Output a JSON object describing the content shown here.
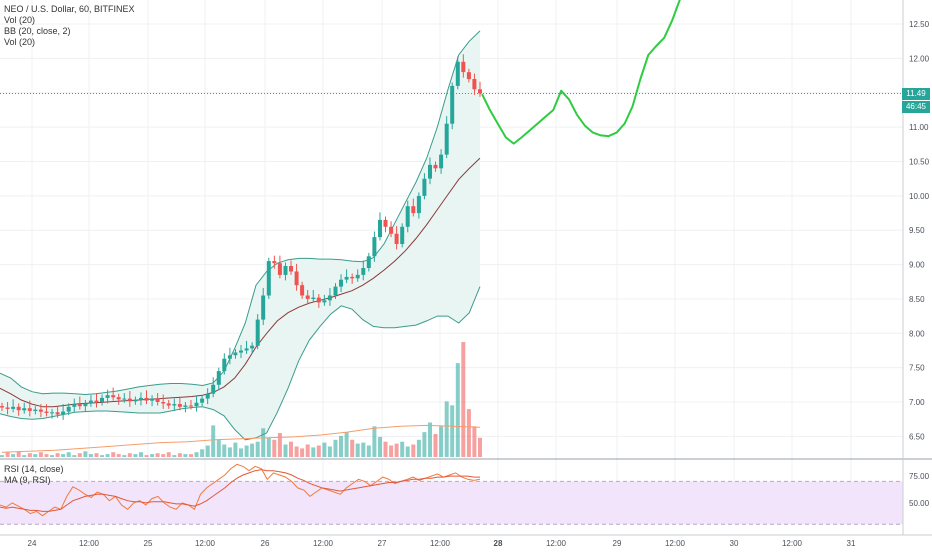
{
  "legend": {
    "title": "NEO / U.S. Dollar, 60, BITFINEX",
    "line2": "Vol (20)",
    "line3": "BB (20, close, 2)",
    "line4": "Vol (20)"
  },
  "rsi_legend": {
    "line1": "RSI (14, close)",
    "line2": "MA (9, RSI)"
  },
  "price_tag": {
    "price": "11.49",
    "countdown": "46:45"
  },
  "colors": {
    "up": "#26a69a",
    "down": "#ef5350",
    "bb_fill": "#e8f5f3",
    "bb_line": "#3a9c8c",
    "basis": "#8b3a3a",
    "forecast": "#2ecc40",
    "rsi_band": "#f1e4fb",
    "rsi_line": "#f07a3a",
    "ma_line": "#e2583a"
  },
  "chart_data": [
    {
      "type": "candlestick",
      "title": "NEO / U.S. Dollar, 60, BITFINEX",
      "ylim": [
        6.2,
        12.85
      ],
      "y_ticks": [
        "12.50",
        "12.00",
        "11.50",
        "11.00",
        "10.50",
        "10.00",
        "9.50",
        "9.00",
        "8.50",
        "8.00",
        "7.50",
        "7.00",
        "6.50"
      ],
      "x_ticks": [
        "24",
        "12:00",
        "25",
        "12:00",
        "26",
        "12:00",
        "27",
        "12:00",
        "28",
        "12:00",
        "29",
        "12:00",
        "30",
        "12:00",
        "31"
      ],
      "last_price": 11.49,
      "candles_close": [
        6.92,
        6.9,
        6.93,
        6.88,
        6.91,
        6.87,
        6.89,
        6.86,
        6.84,
        6.85,
        6.82,
        6.86,
        6.93,
        6.97,
        6.94,
        6.98,
        7.02,
        7.0,
        7.06,
        7.1,
        7.07,
        7.04,
        7.05,
        7.01,
        7.03,
        7.06,
        7.02,
        7.05,
        7.0,
        6.98,
        6.95,
        6.97,
        6.93,
        6.95,
        6.94,
        6.99,
        7.05,
        7.12,
        7.25,
        7.45,
        7.63,
        7.68,
        7.72,
        7.75,
        7.78,
        7.82,
        8.2,
        8.55,
        9.05,
        9.02,
        8.85,
        8.98,
        8.9,
        8.7,
        8.55,
        8.5,
        8.52,
        8.45,
        8.48,
        8.55,
        8.68,
        8.78,
        8.82,
        8.8,
        8.85,
        8.95,
        9.12,
        9.4,
        9.65,
        9.55,
        9.45,
        9.3,
        9.55,
        9.85,
        9.75,
        10.0,
        10.25,
        10.45,
        10.4,
        10.6,
        11.05,
        11.6,
        11.95,
        11.8,
        11.7,
        11.55,
        11.49
      ],
      "bb_upper": [
        7.42,
        7.35,
        7.22,
        7.15,
        7.12,
        7.13,
        7.13,
        7.12,
        7.11,
        7.12,
        7.14,
        7.16,
        7.19,
        7.22,
        7.24,
        7.26,
        7.27,
        7.27,
        7.26,
        7.24,
        7.28,
        7.45,
        7.78,
        8.15,
        8.7,
        8.9,
        9.02,
        9.07,
        9.09,
        9.09,
        9.08,
        9.08,
        9.07,
        9.05,
        9.04,
        9.1,
        9.3,
        9.6,
        9.9,
        10.2,
        10.55,
        11.0,
        11.55,
        12.05,
        12.25,
        12.4
      ],
      "bb_lower": [
        6.83,
        6.79,
        6.76,
        6.75,
        6.76,
        6.79,
        6.82,
        6.85,
        6.86,
        6.87,
        6.87,
        6.86,
        6.85,
        6.84,
        6.84,
        6.84,
        6.87,
        6.9,
        6.92,
        6.93,
        6.89,
        6.8,
        6.6,
        6.45,
        6.48,
        6.55,
        6.85,
        7.2,
        7.6,
        7.9,
        8.1,
        8.28,
        8.4,
        8.35,
        8.2,
        8.1,
        8.08,
        8.08,
        8.1,
        8.12,
        8.18,
        8.25,
        8.25,
        8.15,
        8.3,
        8.68
      ],
      "bb_basis": [
        7.2,
        7.12,
        7.03,
        6.97,
        6.93,
        6.93,
        6.95,
        6.97,
        6.98,
        6.99,
        7.0,
        7.01,
        7.02,
        7.03,
        7.04,
        7.05,
        7.06,
        7.07,
        7.08,
        7.1,
        7.14,
        7.22,
        7.35,
        7.55,
        7.8,
        8.0,
        8.18,
        8.3,
        8.38,
        8.44,
        8.48,
        8.52,
        8.57,
        8.62,
        8.7,
        8.8,
        8.92,
        9.05,
        9.2,
        9.38,
        9.58,
        9.8,
        10.02,
        10.24,
        10.4,
        10.55
      ],
      "forecast": [
        11.48,
        11.25,
        11.05,
        10.85,
        10.76,
        10.85,
        10.95,
        11.05,
        11.15,
        11.25,
        11.53,
        11.4,
        11.18,
        11.02,
        10.92,
        10.88,
        10.87,
        10.92,
        11.05,
        11.3,
        11.7,
        12.05,
        12.18,
        12.3,
        12.55,
        12.86
      ]
    },
    {
      "type": "bar",
      "title": "Vol (20)",
      "values": [
        0.2,
        0.5,
        0.3,
        0.6,
        0.2,
        0.4,
        0.3,
        0.5,
        0.3,
        0.2,
        0.4,
        0.3,
        0.5,
        0.2,
        0.4,
        0.6,
        0.3,
        0.4,
        0.2,
        0.3,
        0.5,
        0.3,
        0.2,
        0.4,
        0.3,
        0.5,
        0.2,
        0.3,
        0.4,
        0.3,
        0.5,
        0.2,
        0.4,
        0.3,
        0.3,
        0.5,
        0.8,
        1.2,
        3.3,
        1.8,
        1.3,
        1.0,
        1.5,
        0.9,
        1.2,
        1.4,
        1.6,
        3.0,
        2.0,
        1.8,
        2.5,
        1.3,
        1.6,
        1.1,
        0.9,
        1.3,
        1.0,
        1.2,
        1.5,
        1.1,
        1.8,
        2.2,
        2.6,
        1.8,
        1.4,
        1.5,
        1.2,
        3.2,
        2.1,
        1.6,
        1.2,
        1.4,
        1.6,
        1.1,
        1.3,
        1.8,
        2.6,
        3.6,
        2.4,
        3.2,
        5.8,
        5.4,
        9.8,
        12.0,
        5.0,
        3.2,
        2.0
      ],
      "ma": [
        0.5,
        0.6,
        0.7,
        0.9,
        1.1,
        1.3,
        1.5,
        1.6,
        1.8,
        1.9,
        2.0,
        2.1,
        2.3,
        2.6,
        3.0,
        3.2,
        3.3,
        3.2,
        3.1
      ]
    },
    {
      "type": "line",
      "title": "RSI (14, close)",
      "ylim": [
        20,
        90
      ],
      "y_ticks": [
        "75.00",
        "50.00"
      ],
      "band": [
        30,
        70
      ],
      "series": [
        {
          "name": "RSI (14, close)",
          "values": [
            48,
            46,
            50,
            47,
            44,
            40,
            42,
            38,
            42,
            46,
            44,
            56,
            65,
            62,
            58,
            55,
            60,
            58,
            52,
            56,
            48,
            44,
            50,
            52,
            48,
            54,
            56,
            50,
            46,
            44,
            50,
            48,
            44,
            58,
            64,
            68,
            72,
            76,
            82,
            86,
            84,
            80,
            84,
            82,
            72,
            78,
            76,
            74,
            70,
            64,
            62,
            56,
            60,
            64,
            62,
            60,
            58,
            64,
            68,
            72,
            70,
            66,
            70,
            74,
            72,
            68,
            70,
            72,
            74,
            71,
            73,
            75,
            77,
            74,
            76,
            78,
            74,
            72,
            71,
            72
          ]
        },
        {
          "name": "MA (9, RSI)",
          "values": [
            46,
            45,
            46,
            45,
            44,
            43,
            43,
            42,
            42,
            43,
            44,
            48,
            52,
            54,
            56,
            57,
            58,
            58,
            57,
            56,
            54,
            52,
            51,
            51,
            50,
            51,
            51,
            51,
            50,
            49,
            49,
            48,
            47,
            49,
            52,
            56,
            60,
            64,
            69,
            73,
            76,
            78,
            80,
            81,
            80,
            80,
            79,
            78,
            76,
            73,
            71,
            68,
            66,
            64,
            63,
            62,
            61,
            62,
            63,
            64,
            65,
            66,
            67,
            68,
            69,
            69,
            70,
            71,
            72,
            72,
            73,
            73,
            74,
            74,
            75,
            75,
            75,
            75,
            74,
            74
          ]
        }
      ]
    }
  ]
}
